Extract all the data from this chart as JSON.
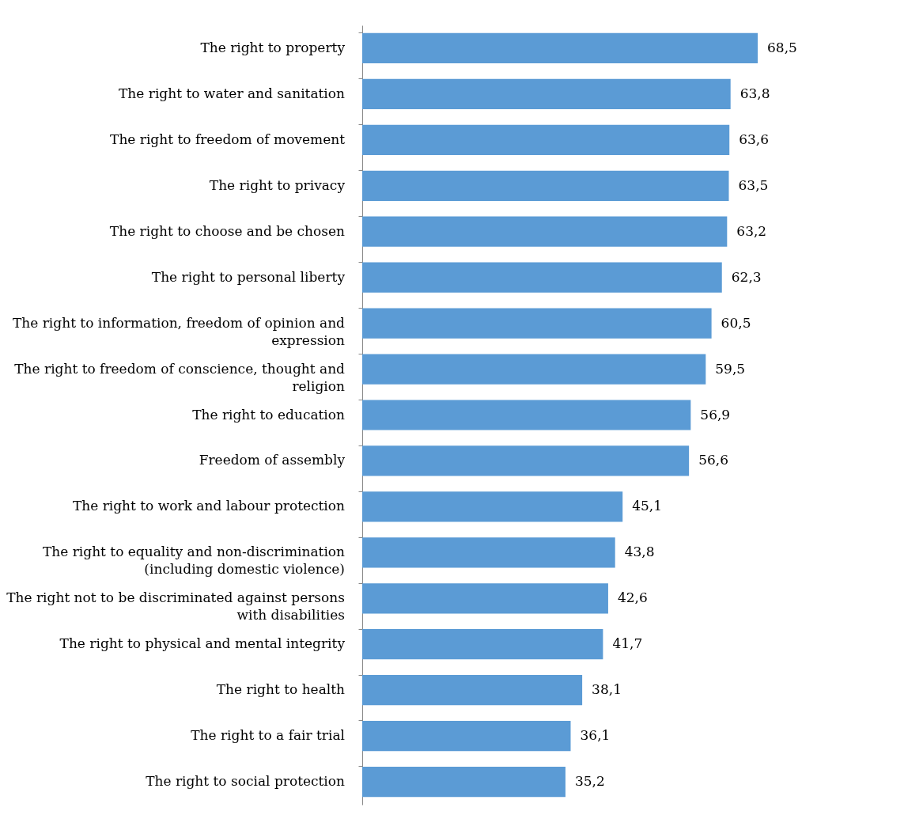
{
  "chart_data": {
    "type": "bar",
    "orientation": "horizontal",
    "categories": [
      "The right to property",
      "The right to water and sanitation",
      "The right to freedom of movement",
      "The right to privacy",
      "The right to choose and be chosen",
      "The right to personal liberty",
      "The right to information, freedom of opinion and expression",
      "The right to freedom of conscience, thought and religion",
      "The right to education",
      "Freedom of assembly",
      "The right to work and labour protection",
      "The right to equality and non-discrimination (including domestic violence)",
      "The right not to be discriminated against persons with disabilities",
      "The right to physical and mental integrity",
      "The right to health",
      "The right to a fair trial",
      "The right to social protection"
    ],
    "values": [
      68.5,
      63.8,
      63.6,
      63.5,
      63.2,
      62.3,
      60.5,
      59.5,
      56.9,
      56.6,
      45.1,
      43.8,
      42.6,
      41.7,
      38.1,
      36.1,
      35.2
    ],
    "value_labels": [
      "68,5",
      "63,8",
      "63,6",
      "63,5",
      "63,2",
      "62,3",
      "60,5",
      "59,5",
      "56,9",
      "56,6",
      "45,1",
      "43,8",
      "42,6",
      "41,7",
      "38,1",
      "36,1",
      "35,2"
    ],
    "color": "#5b9bd5",
    "grid": false
  }
}
